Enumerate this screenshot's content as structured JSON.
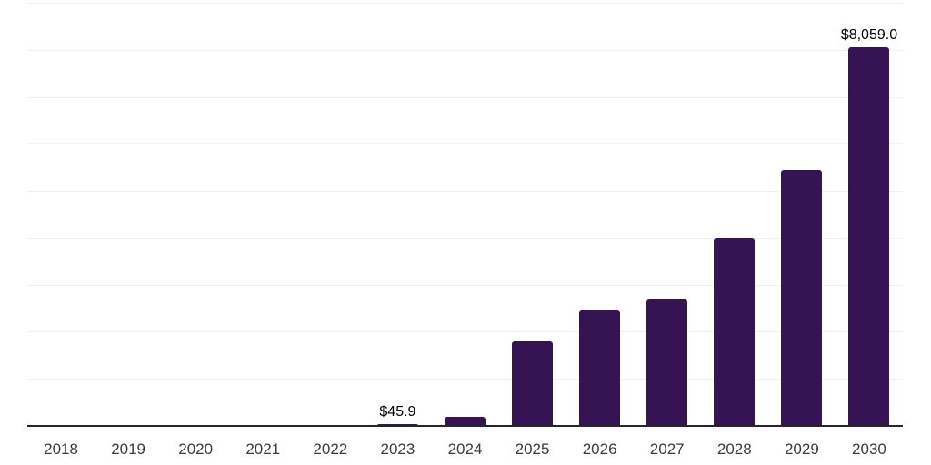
{
  "chart_data": {
    "type": "bar",
    "title": "",
    "xlabel": "",
    "ylabel": "",
    "categories": [
      "2018",
      "2019",
      "2020",
      "2021",
      "2022",
      "2023",
      "2024",
      "2025",
      "2026",
      "2027",
      "2028",
      "2029",
      "2030"
    ],
    "values": [
      2,
      4,
      8,
      14,
      26,
      45.9,
      185,
      1800,
      2465,
      2710,
      3990,
      5450,
      8059.0
    ],
    "data_labels": [
      {
        "category": "2023",
        "text": "$45.9"
      },
      {
        "category": "2030",
        "text": "$8,059.0"
      }
    ],
    "ylim": [
      0,
      9000
    ],
    "gridline_step": 1000,
    "grid": true,
    "legend": "none",
    "bar_color": "#361353",
    "axis_line_color": "#262626",
    "gridline_color": "#f0f0f0",
    "tick_label_color": "#3c3c3c",
    "data_label_color": "#000000",
    "background_color": "#ffffff"
  }
}
